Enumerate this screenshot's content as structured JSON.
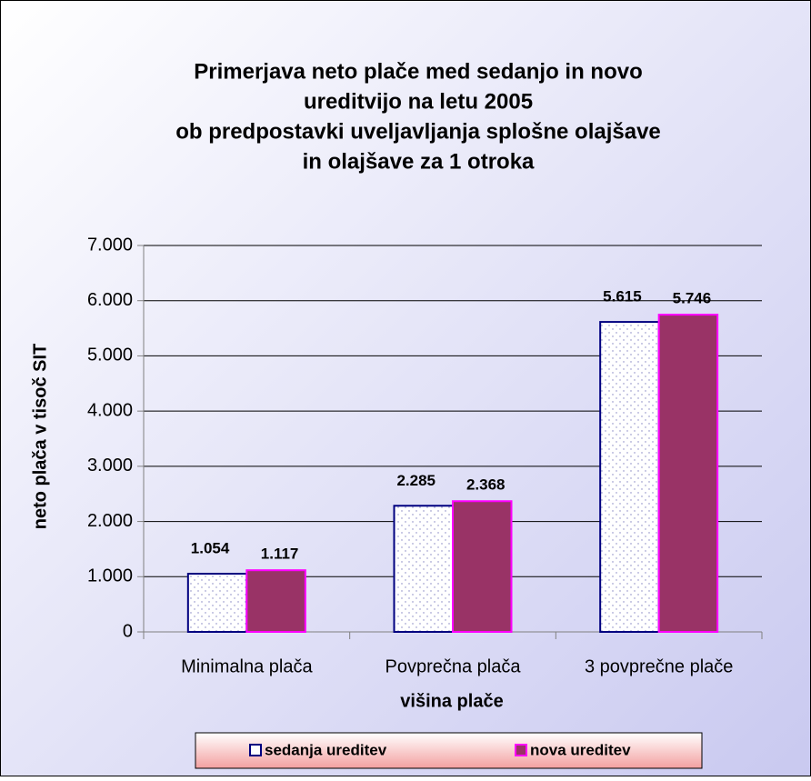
{
  "chart_data": {
    "type": "bar",
    "title": [
      "Primerjava neto plače med sedanjo in novo",
      "ureditvijo  na letu 2005",
      "ob predpostavki uveljavljanja splošne olajšave",
      "in olajšave za 1 otroka"
    ],
    "x_label": "višina plače",
    "y_label": "neto plača v tisoč SIT",
    "categories": [
      "Minimalna plača",
      "Povprečna plača",
      "3 povprečne plače"
    ],
    "series": [
      {
        "name": "sedanja ureditev",
        "color": "#ffffff",
        "border": "#000080",
        "pattern": "dots",
        "values": [
          1054,
          2285,
          5615
        ],
        "value_labels": [
          "1.054",
          "2.285",
          "5.615"
        ]
      },
      {
        "name": "nova ureditev",
        "color": "#993366",
        "border": "#ff00ff",
        "values": [
          1117,
          2368,
          5746
        ],
        "value_labels": [
          "1.117",
          "2.368",
          "5.746"
        ]
      }
    ],
    "ylim": [
      0,
      7000
    ],
    "yticks": [
      0,
      {
        "value": 1000,
        "label": "1.000"
      },
      {
        "value": 2000,
        "label": "2.000"
      },
      {
        "value": 3000,
        "label": "3.000"
      },
      {
        "value": 4000,
        "label": "4.000"
      },
      {
        "value": 5000,
        "label": "5.000"
      },
      {
        "value": 6000,
        "label": "6.000"
      },
      {
        "value": 7000,
        "label": "7.000"
      }
    ],
    "grid": true,
    "legend": "bottom"
  }
}
